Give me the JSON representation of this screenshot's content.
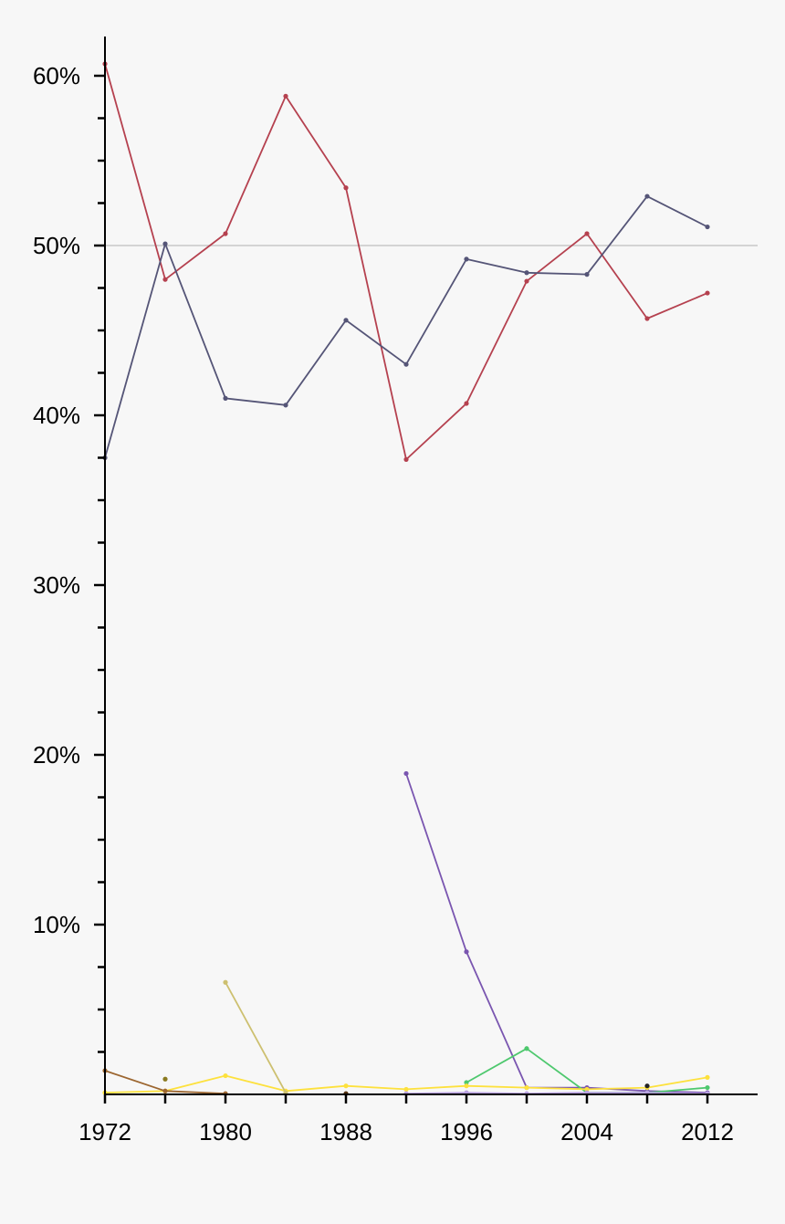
{
  "chart_data": {
    "type": "line",
    "title": "",
    "xlabel": "",
    "ylabel": "",
    "xlim": [
      1972,
      2015.5
    ],
    "ylim": [
      0,
      62
    ],
    "x_ticks": [
      1972,
      1980,
      1988,
      1996,
      2004,
      2012
    ],
    "x_tick_labels": [
      "1972",
      "1980",
      "1988",
      "1996",
      "2004",
      "2012"
    ],
    "y_ticks": [
      10,
      20,
      30,
      40,
      50,
      60
    ],
    "y_tick_labels": [
      "10%",
      "20%",
      "30%",
      "40%",
      "50%",
      "60%"
    ],
    "y_minor_step": 2.5,
    "reference_line": 50,
    "grid": false,
    "legend": "none",
    "series": [
      {
        "color": "#b5414f",
        "points": [
          [
            1972,
            60.7
          ],
          [
            1976,
            48.0
          ],
          [
            1980,
            50.7
          ],
          [
            1984,
            58.8
          ],
          [
            1988,
            53.4
          ],
          [
            1992,
            37.4
          ],
          [
            1996,
            40.7
          ],
          [
            2000,
            47.9
          ],
          [
            2004,
            50.7
          ],
          [
            2008,
            45.7
          ],
          [
            2012,
            47.2
          ]
        ]
      },
      {
        "color": "#555577",
        "points": [
          [
            1972,
            37.5
          ],
          [
            1976,
            50.1
          ],
          [
            1980,
            41.0
          ],
          [
            1984,
            40.6
          ],
          [
            1988,
            45.6
          ],
          [
            1992,
            43.0
          ],
          [
            1996,
            49.2
          ],
          [
            2000,
            48.4
          ],
          [
            2004,
            48.3
          ],
          [
            2008,
            52.9
          ],
          [
            2012,
            51.1
          ]
        ]
      },
      {
        "color": "#7a56b0",
        "points": [
          [
            1992,
            18.9
          ],
          [
            1996,
            8.4
          ],
          [
            2000,
            0.4
          ],
          [
            2004,
            0.4
          ],
          [
            2008,
            0.2
          ],
          [
            2012,
            0.1
          ]
        ]
      },
      {
        "color": "#4ec86e",
        "points": [
          [
            1996,
            0.7
          ],
          [
            2000,
            2.7
          ],
          [
            2004,
            0.1
          ],
          [
            2008,
            0.1
          ],
          [
            2012,
            0.4
          ]
        ]
      },
      {
        "color": "#fde13d",
        "points": [
          [
            1972,
            0.1
          ],
          [
            1976,
            0.2
          ],
          [
            1980,
            1.1
          ],
          [
            1984,
            0.2
          ],
          [
            1988,
            0.5
          ],
          [
            1992,
            0.3
          ],
          [
            1996,
            0.5
          ],
          [
            2000,
            0.4
          ],
          [
            2004,
            0.3
          ],
          [
            2008,
            0.4
          ],
          [
            2012,
            1.0
          ]
        ]
      },
      {
        "color": "#cdc070",
        "points": [
          [
            1980,
            6.6
          ],
          [
            1984,
            0.1
          ]
        ]
      },
      {
        "color": "#9c6630",
        "points": [
          [
            1972,
            1.4
          ],
          [
            1976,
            0.2
          ],
          [
            1980,
            0.05
          ]
        ]
      },
      {
        "color": "#b8a0e0",
        "points": [
          [
            1992,
            0.05
          ],
          [
            1996,
            0.1
          ],
          [
            2000,
            0.05
          ],
          [
            2004,
            0.1
          ],
          [
            2008,
            0.1
          ],
          [
            2012,
            0.05
          ]
        ]
      },
      {
        "color": "#8a7a20",
        "points": [
          [
            1976,
            0.9
          ]
        ]
      },
      {
        "color": "#222222",
        "points": [
          [
            2008,
            0.5
          ]
        ]
      },
      {
        "color": "#553311",
        "points": [
          [
            1988,
            0.05
          ]
        ]
      }
    ]
  }
}
